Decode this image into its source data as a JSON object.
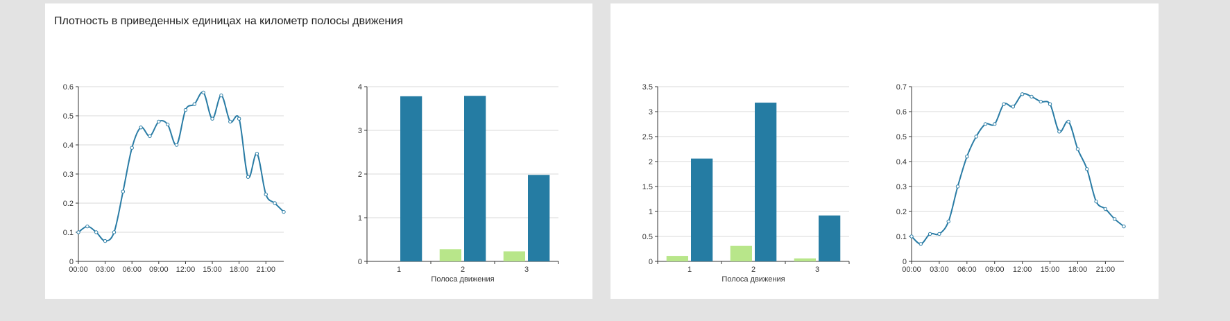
{
  "panels": [
    {
      "title": "Плотность в приведенных единицах на километр полосы движения"
    },
    {
      "title": ""
    }
  ],
  "colors": {
    "line": "#2a7ca5",
    "bar_dark": "#257ca3",
    "bar_light": "#b8e68a",
    "grid": "#d9d9d9",
    "axis": "#333333"
  },
  "chart_data": [
    {
      "type": "line",
      "xlabel": "",
      "ylabel": "",
      "x_ticks": [
        "00:00",
        "03:00",
        "06:00",
        "09:00",
        "12:00",
        "15:00",
        "18:00",
        "21:00"
      ],
      "y_ticks": [
        "0",
        "0.1",
        "0.2",
        "0.3",
        "0.4",
        "0.5",
        "0.6"
      ],
      "ylim": [
        0,
        0.6
      ],
      "grid": true,
      "x": [
        0,
        1,
        2,
        3,
        4,
        5,
        6,
        7,
        8,
        9,
        10,
        11,
        12,
        13,
        14,
        15,
        16,
        17,
        18,
        19,
        20,
        21,
        22,
        23
      ],
      "values": [
        0.1,
        0.12,
        0.1,
        0.07,
        0.1,
        0.24,
        0.39,
        0.46,
        0.43,
        0.48,
        0.47,
        0.4,
        0.52,
        0.54,
        0.58,
        0.49,
        0.57,
        0.48,
        0.49,
        0.29,
        0.37,
        0.23,
        0.2,
        0.17
      ]
    },
    {
      "type": "bar",
      "xlabel": "Полоса движения",
      "ylabel": "",
      "categories": [
        "1",
        "2",
        "3"
      ],
      "y_ticks": [
        "0",
        "1",
        "2",
        "3",
        "4"
      ],
      "ylim": [
        0,
        4
      ],
      "grid": true,
      "series": [
        {
          "values": [
            0.0,
            0.28,
            0.23
          ],
          "color": "#b8e68a"
        },
        {
          "values": [
            3.78,
            3.79,
            1.98
          ],
          "color": "#257ca3"
        }
      ]
    },
    {
      "type": "bar",
      "xlabel": "Полоса движения",
      "ylabel": "",
      "categories": [
        "1",
        "2",
        "3"
      ],
      "y_ticks": [
        "0",
        "0.5",
        "1",
        "1.5",
        "2",
        "2.5",
        "3",
        "3.5"
      ],
      "ylim": [
        0,
        3.5
      ],
      "grid": true,
      "series": [
        {
          "values": [
            0.11,
            0.31,
            0.06
          ],
          "color": "#b8e68a"
        },
        {
          "values": [
            2.06,
            3.18,
            0.92
          ],
          "color": "#257ca3"
        }
      ]
    },
    {
      "type": "line",
      "xlabel": "",
      "ylabel": "",
      "x_ticks": [
        "00:00",
        "03:00",
        "06:00",
        "09:00",
        "12:00",
        "15:00",
        "18:00",
        "21:00"
      ],
      "y_ticks": [
        "0",
        "0.1",
        "0.2",
        "0.3",
        "0.4",
        "0.5",
        "0.6",
        "0.7"
      ],
      "ylim": [
        0,
        0.7
      ],
      "grid": true,
      "x": [
        0,
        1,
        2,
        3,
        4,
        5,
        6,
        7,
        8,
        9,
        10,
        11,
        12,
        13,
        14,
        15,
        16,
        17,
        18,
        19,
        20,
        21,
        22,
        23
      ],
      "values": [
        0.1,
        0.07,
        0.11,
        0.11,
        0.16,
        0.3,
        0.42,
        0.5,
        0.55,
        0.55,
        0.63,
        0.62,
        0.67,
        0.66,
        0.64,
        0.63,
        0.52,
        0.56,
        0.45,
        0.37,
        0.24,
        0.21,
        0.17,
        0.14
      ]
    }
  ]
}
